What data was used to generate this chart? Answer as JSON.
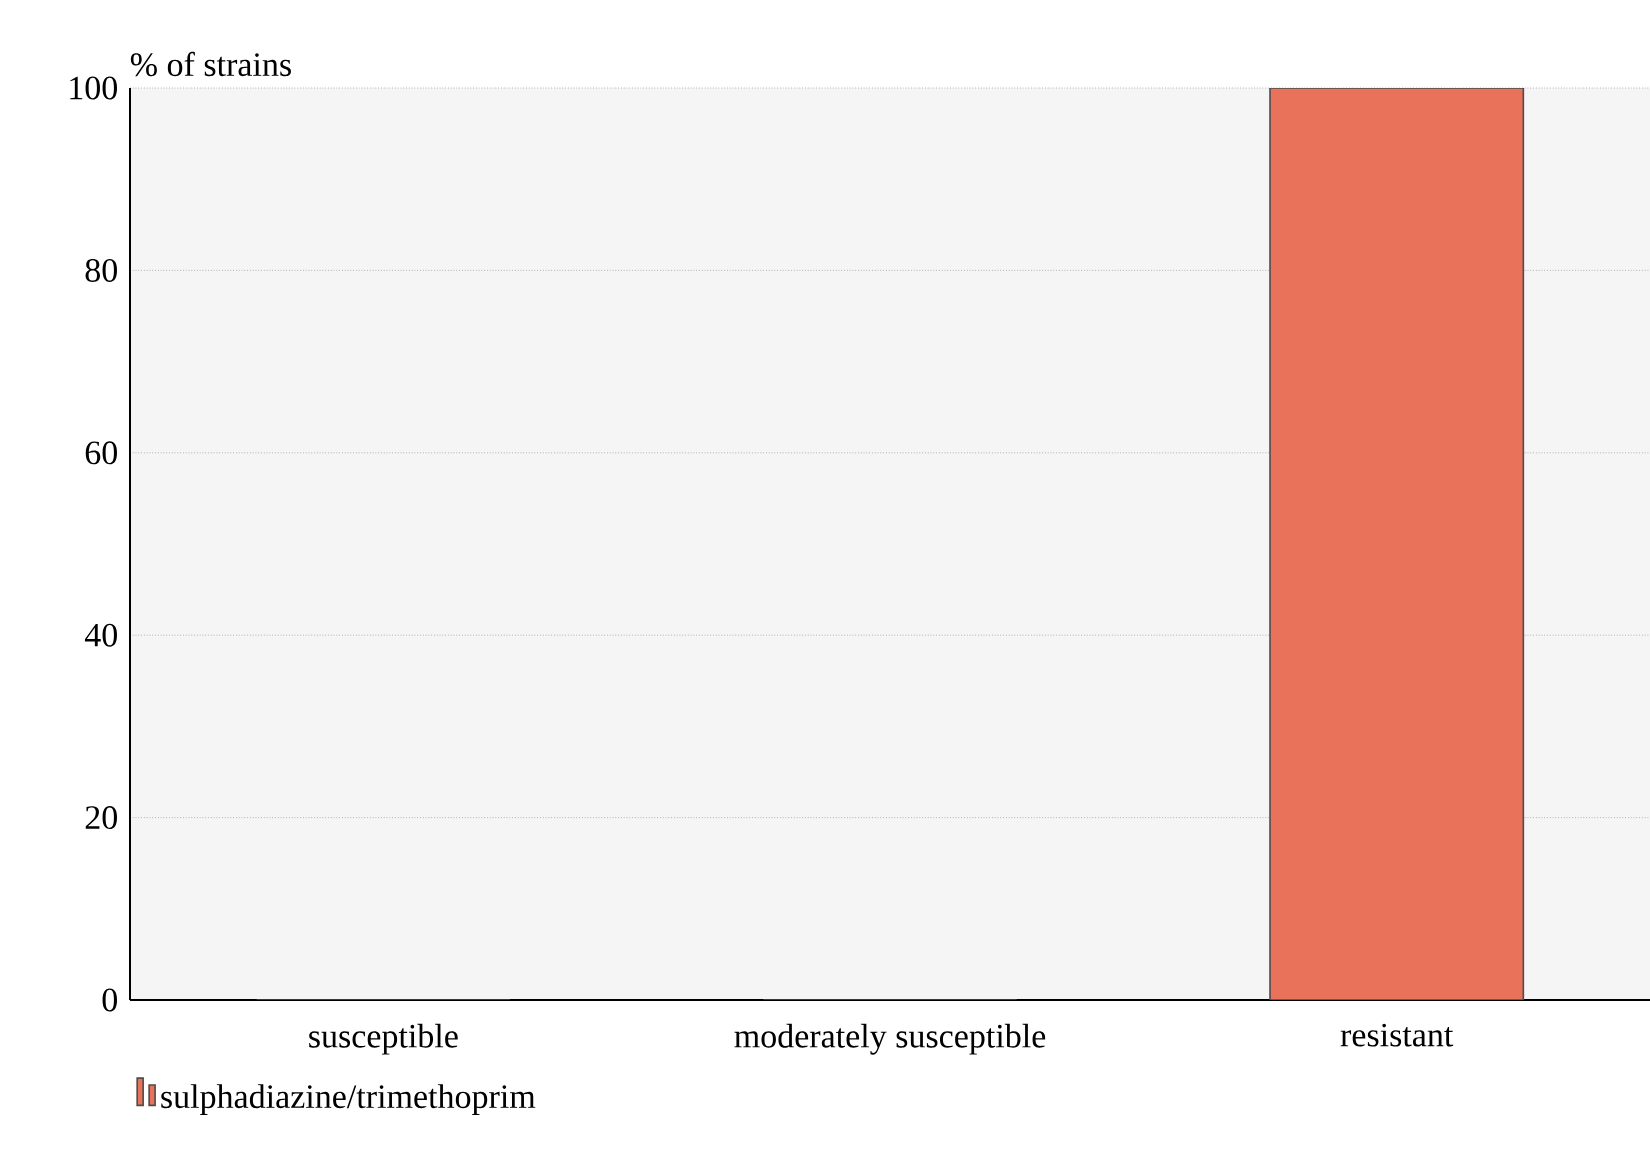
{
  "chart_data": {
    "type": "bar",
    "ylabel": "% of strains",
    "categories": [
      "susceptible",
      "moderately susceptible",
      "resistant"
    ],
    "series": [
      {
        "name": "sulphadiazine/trimethoprim",
        "color": "#e8735a",
        "values": [
          0,
          0,
          100
        ]
      }
    ],
    "ylim": [
      0,
      100
    ],
    "yticks": [
      0,
      20,
      40,
      60,
      80,
      100
    ],
    "grid": "y",
    "legend": "bottom"
  }
}
